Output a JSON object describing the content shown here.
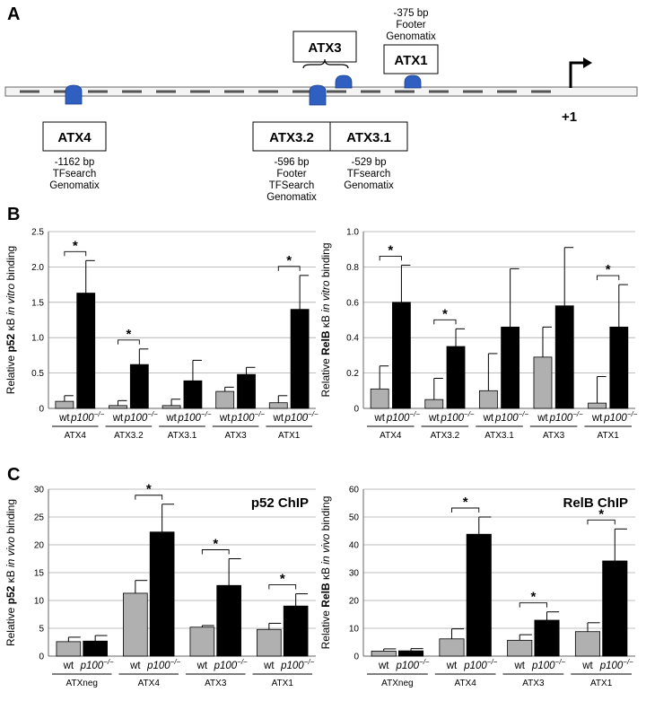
{
  "panel_a": {
    "letter": "A",
    "tss_label": "+1",
    "sites": [
      {
        "name": "ATX1",
        "notes": [
          "-375 bp",
          "Footer",
          "Genomatix"
        ]
      },
      {
        "name": "ATX3",
        "notes": []
      },
      {
        "name": "ATX4",
        "notes": [
          "-1162 bp",
          "TFsearch",
          "Genomatix"
        ]
      },
      {
        "name": "ATX3.2",
        "notes": [
          "-596 bp",
          "Footer",
          "TFSearch",
          "Genomatix"
        ]
      },
      {
        "name": "ATX3.1",
        "notes": [
          "-529 bp",
          "TFsearch",
          "Genomatix"
        ]
      }
    ],
    "colors": {
      "site": "#2f5fc0",
      "dash": "#555555"
    }
  },
  "panel_b_letter": "B",
  "panel_c_letter": "C",
  "legend": {
    "wt": "wt",
    "ko": "p100",
    "ko_sup": "−/−"
  },
  "colors": {
    "wt": "#b0b0b0",
    "ko": "#000000",
    "grid": "#aaaaaa"
  },
  "chart_data": [
    {
      "type": "bar",
      "ylabel_pre": "Relative ",
      "ylabel_bold": "p52",
      "ylabel_mid": " κB ",
      "ylabel_it": "in vitro",
      "ylabel_post": " binding",
      "title": "",
      "categories": [
        "ATX4",
        "ATX3.2",
        "ATX3.1",
        "ATX3",
        "ATX1"
      ],
      "ylim": [
        0,
        2.5
      ],
      "yticks": [
        "0",
        "0.5",
        "1.0",
        "1.5",
        "2.0",
        "2.5"
      ],
      "grid": true,
      "series": [
        {
          "name": "wt",
          "values": [
            0.1,
            0.04,
            0.04,
            0.24,
            0.08
          ],
          "errors": [
            0.08,
            0.07,
            0.09,
            0.06,
            0.1
          ]
        },
        {
          "name": "p100-/-",
          "values": [
            1.63,
            0.62,
            0.39,
            0.48,
            1.4
          ],
          "errors": [
            0.46,
            0.22,
            0.29,
            0.1,
            0.48
          ]
        }
      ],
      "significant": [
        0,
        1,
        4
      ]
    },
    {
      "type": "bar",
      "ylabel_pre": "Relative ",
      "ylabel_bold": "RelB",
      "ylabel_mid": " κB ",
      "ylabel_it": "in vitro",
      "ylabel_post": " binding",
      "title": "",
      "categories": [
        "ATX4",
        "ATX3.2",
        "ATX3.1",
        "ATX3",
        "ATX1"
      ],
      "ylim": [
        0,
        1.0
      ],
      "yticks": [
        "0",
        "0.2",
        "0.4",
        "0.6",
        "0.8",
        "1.0"
      ],
      "grid": true,
      "series": [
        {
          "name": "wt",
          "values": [
            0.11,
            0.05,
            0.1,
            0.29,
            0.03
          ],
          "errors": [
            0.13,
            0.12,
            0.21,
            0.17,
            0.15
          ]
        },
        {
          "name": "p100-/-",
          "values": [
            0.6,
            0.35,
            0.46,
            0.58,
            0.46
          ],
          "errors": [
            0.21,
            0.1,
            0.33,
            0.33,
            0.24
          ]
        }
      ],
      "significant": [
        0,
        1,
        4
      ]
    },
    {
      "type": "bar",
      "ylabel_pre": "Relative ",
      "ylabel_bold": "p52",
      "ylabel_mid": " κB ",
      "ylabel_it": "in vivo",
      "ylabel_post": " binding",
      "title": "p52 ChIP",
      "categories": [
        "ATXneg",
        "ATX4",
        "ATX3",
        "ATX1"
      ],
      "ylim": [
        0,
        30
      ],
      "yticks": [
        "0",
        "5",
        "10",
        "15",
        "20",
        "25",
        "30"
      ],
      "grid": true,
      "series": [
        {
          "name": "wt",
          "values": [
            2.6,
            11.3,
            5.2,
            4.8
          ],
          "errors": [
            0.8,
            2.3,
            0.3,
            1.1
          ]
        },
        {
          "name": "p100-/-",
          "values": [
            2.7,
            22.3,
            12.7,
            9.0
          ],
          "errors": [
            1.0,
            5.0,
            4.8,
            2.2
          ]
        }
      ],
      "significant": [
        1,
        2,
        3
      ]
    },
    {
      "type": "bar",
      "ylabel_pre": "Relative ",
      "ylabel_bold": "RelB",
      "ylabel_mid": " κB ",
      "ylabel_it": "in vivo",
      "ylabel_post": " binding",
      "title": "RelB ChIP",
      "categories": [
        "ATXneg",
        "ATX4",
        "ATX3",
        "ATX1"
      ],
      "ylim": [
        0,
        60
      ],
      "yticks": [
        "0",
        "10",
        "20",
        "30",
        "40",
        "50",
        "60"
      ],
      "grid": true,
      "series": [
        {
          "name": "wt",
          "values": [
            1.8,
            6.2,
            5.7,
            8.8
          ],
          "errors": [
            0.8,
            3.6,
            2.0,
            3.2
          ]
        },
        {
          "name": "p100-/-",
          "values": [
            1.9,
            43.8,
            12.9,
            34.2
          ],
          "errors": [
            0.8,
            6.2,
            3.0,
            11.5
          ]
        }
      ],
      "significant": [
        1,
        2,
        3
      ]
    }
  ]
}
